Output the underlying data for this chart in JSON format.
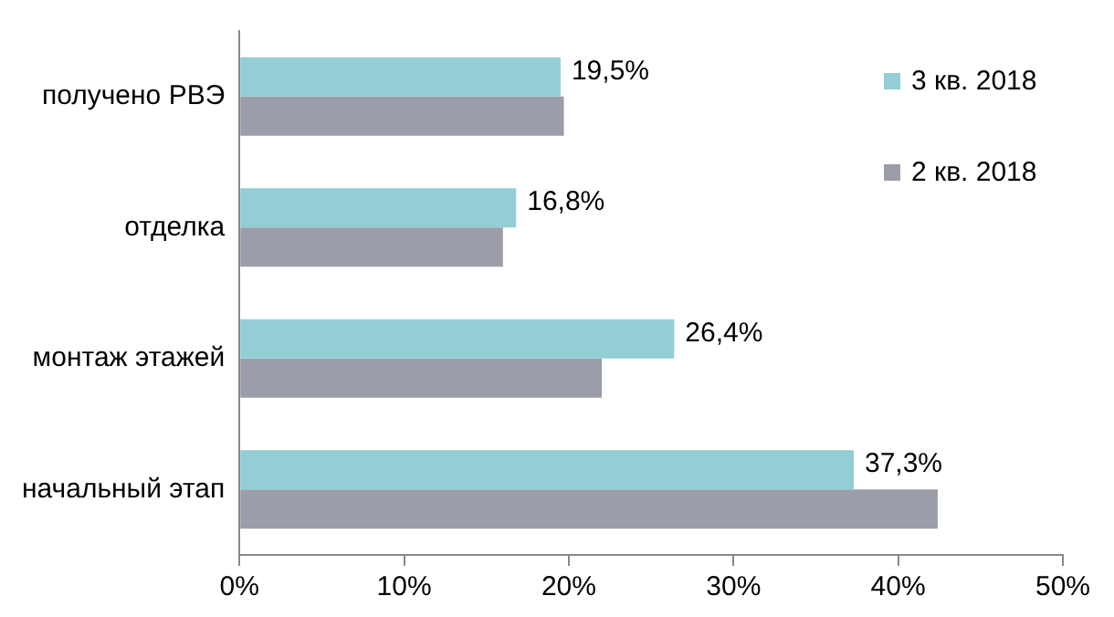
{
  "chart_data": {
    "type": "bar",
    "orientation": "horizontal",
    "categories": [
      "получено РВЭ",
      "отделка",
      "монтаж этажей",
      "начальный этап"
    ],
    "series": [
      {
        "name": "3 кв. 2018",
        "color": "#93cdd5",
        "values": [
          19.5,
          16.8,
          26.4,
          37.3
        ],
        "value_labels": [
          "19,5%",
          "16,8%",
          "26,4%",
          "37,3%"
        ]
      },
      {
        "name": "2 кв. 2018",
        "color": "#9b9ea8",
        "values": [
          19.7,
          16.0,
          22.0,
          42.4
        ]
      }
    ],
    "xlim": [
      0,
      50
    ],
    "xticks": [
      {
        "value": 0,
        "label": "0%"
      },
      {
        "value": 10,
        "label": "10%"
      },
      {
        "value": 20,
        "label": "20%"
      },
      {
        "value": 30,
        "label": "30%"
      },
      {
        "value": 40,
        "label": "40%"
      },
      {
        "value": 50,
        "label": "50%"
      }
    ],
    "grid": false,
    "legend": "top right"
  }
}
